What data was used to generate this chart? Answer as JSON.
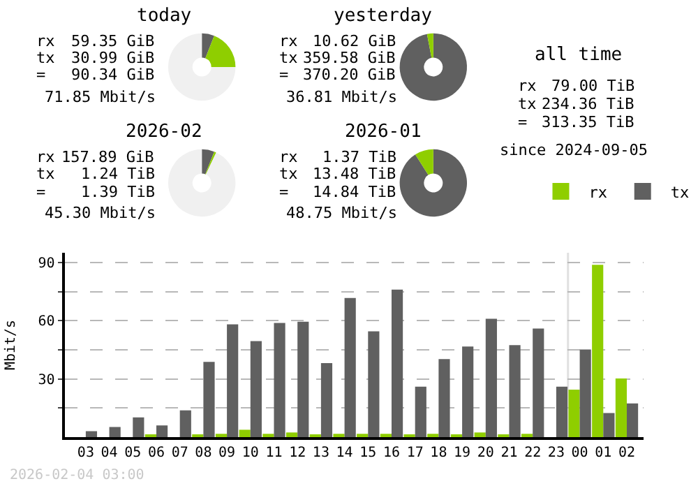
{
  "chart_data": [
    {
      "type": "donut",
      "title": "today",
      "annotations": [
        "rx",
        "59.35 GiB",
        "tx",
        "30.99 GiB",
        "=",
        "90.34 GiB",
        "71.85 Mbit/s"
      ],
      "categories": [
        null,
        null,
        null
      ],
      "values": [
        6,
        19,
        75
      ],
      "colors": [
        "#606060",
        "#8fce00",
        "#f0f0f0"
      ]
    },
    {
      "type": "donut",
      "title": "yesterday",
      "annotations": [
        "rx",
        "10.62 GiB",
        "tx",
        "359.58 GiB",
        "=",
        "370.20 GiB",
        "36.81 Mbit/s"
      ],
      "categories": [
        null,
        null
      ],
      "values": [
        97,
        3
      ],
      "colors": [
        "#606060",
        "#8fce00"
      ]
    },
    {
      "type": "donut",
      "title": "2026-02",
      "annotations": [
        "rx",
        "157.89 GiB",
        "tx",
        "1.24 TiB",
        "=",
        "1.39 TiB",
        "45.30 Mbit/s"
      ],
      "categories": [
        null,
        null,
        null
      ],
      "values": [
        6,
        1,
        93
      ],
      "colors": [
        "#606060",
        "#8fce00",
        "#f0f0f0"
      ]
    },
    {
      "type": "donut",
      "title": "2026-01",
      "annotations": [
        "rx",
        "1.37 TiB",
        "tx",
        "13.48 TiB",
        "=",
        "14.84 TiB",
        "48.75 Mbit/s"
      ],
      "categories": [
        null,
        null
      ],
      "values": [
        91,
        9
      ],
      "colors": [
        "#606060",
        "#8fce00"
      ]
    },
    {
      "type": "other",
      "title": "all time",
      "annotations": [
        "rx",
        "79.00 TiB",
        "tx",
        "234.36 TiB",
        "=",
        "313.35 TiB",
        "since 2024-09-05"
      ]
    },
    {
      "type": "bar",
      "ylabel": "Mbit/s",
      "categories": [
        "03",
        "04",
        "05",
        "06",
        "07",
        "08",
        "09",
        "10",
        "11",
        "12",
        "13",
        "14",
        "15",
        "16",
        "17",
        "18",
        "19",
        "20",
        "21",
        "22",
        "23",
        "00",
        "01",
        "02"
      ],
      "series": [
        {
          "name": "rx",
          "color": "#8fce00",
          "values": [
            0,
            0,
            0,
            1.0,
            0,
            1.0,
            1.7,
            3.8,
            1.7,
            2.4,
            1.0,
            1.7,
            1.7,
            1.7,
            1.0,
            1.7,
            1.0,
            2.4,
            1.0,
            1.7,
            0,
            24.5,
            88.8,
            30.2
          ]
        },
        {
          "name": "tx",
          "color": "#606060",
          "values": [
            3.1,
            5.2,
            10.2,
            6.0,
            13.8,
            38.8,
            58.1,
            49.5,
            58.8,
            59.5,
            38.1,
            71.7,
            54.5,
            76.0,
            26.0,
            40.2,
            46.7,
            61.0,
            47.4,
            56.0,
            26.0,
            45.2,
            12.4,
            17.4
          ]
        }
      ],
      "ylim": [
        0,
        95
      ],
      "yticks": [
        {
          "value": 15,
          "label": null
        },
        30,
        {
          "value": 45,
          "label": null
        },
        60,
        {
          "value": 75,
          "label": null
        },
        90
      ],
      "grid": "y",
      "legend": "top right",
      "ref_lines": [
        {
          "axis": "x",
          "value": "00",
          "color": "#e0e0e0"
        }
      ],
      "annotations": [
        "2026-02-04 03:00"
      ]
    }
  ]
}
